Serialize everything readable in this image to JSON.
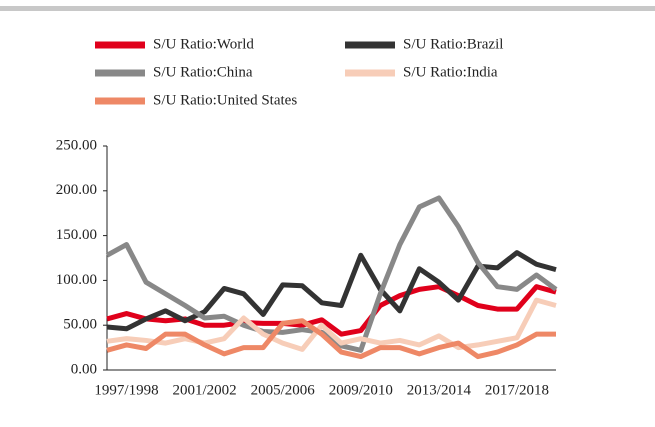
{
  "chart_data": {
    "type": "line",
    "categories": [
      null,
      "1997/1998",
      null,
      null,
      null,
      "2001/2002",
      null,
      null,
      null,
      "2005/2006",
      null,
      null,
      null,
      "2009/2010",
      null,
      null,
      null,
      "2013/2014",
      null,
      null,
      null,
      "2017/2018",
      null,
      null
    ],
    "series": [
      {
        "name": "S/U Ratio:World",
        "color": "#e0001b",
        "values": [
          57,
          63,
          57,
          55,
          57,
          50,
          50,
          53,
          52,
          52,
          50,
          56,
          40,
          44,
          72,
          83,
          90,
          93,
          83,
          72,
          68,
          68,
          93,
          87
        ]
      },
      {
        "name": "S/U Ratio:Brazil",
        "color": "#333333",
        "values": [
          48,
          46,
          57,
          66,
          55,
          65,
          91,
          85,
          62,
          95,
          94,
          75,
          72,
          128,
          90,
          66,
          113,
          98,
          78,
          116,
          114,
          131,
          118,
          112
        ]
      },
      {
        "name": "S/U Ratio:China",
        "color": "#888888",
        "values": [
          128,
          140,
          98,
          85,
          72,
          58,
          60,
          50,
          43,
          42,
          45,
          42,
          27,
          22,
          85,
          140,
          182,
          192,
          160,
          120,
          93,
          90,
          106,
          90
        ]
      },
      {
        "name": "S/U Ratio:India",
        "color": "#f7cdb8",
        "values": [
          32,
          35,
          33,
          30,
          35,
          30,
          35,
          58,
          40,
          30,
          23,
          50,
          30,
          35,
          30,
          33,
          28,
          38,
          25,
          28,
          32,
          36,
          78,
          72
        ]
      },
      {
        "name": "S/U Ratio:United States",
        "color": "#ee8866",
        "values": [
          22,
          28,
          24,
          40,
          40,
          28,
          18,
          25,
          25,
          52,
          55,
          40,
          20,
          15,
          25,
          25,
          18,
          25,
          30,
          15,
          20,
          28,
          40,
          40
        ]
      }
    ],
    "ylim": [
      0,
      250
    ],
    "yticks": [
      {
        "value": 0,
        "label": "0.00"
      },
      {
        "value": 50,
        "label": "50.00"
      },
      {
        "value": 100,
        "label": "100.00"
      },
      {
        "value": 150,
        "label": "150.00"
      },
      {
        "value": 200,
        "label": "200.00"
      },
      {
        "value": 250,
        "label": "250.00"
      }
    ]
  }
}
